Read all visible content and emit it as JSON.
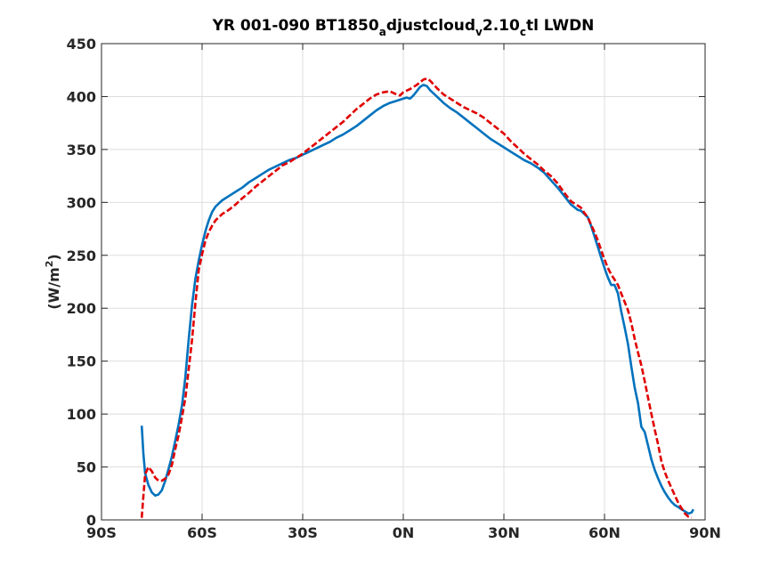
{
  "chart_data": {
    "type": "line",
    "title": "YR 001-090 BT1850",
    "title_parts": [
      {
        "text": "YR 001-090 BT1850",
        "sub": false
      },
      {
        "text": "a",
        "sub": true
      },
      {
        "text": "djustcloud",
        "sub": false
      },
      {
        "text": "v",
        "sub": true
      },
      {
        "text": "2.10",
        "sub": false
      },
      {
        "text": "c",
        "sub": true
      },
      {
        "text": "tl LWDN",
        "sub": false
      }
    ],
    "xlabel": "",
    "ylabel": "(W/m",
    "ylabel_sup": "2",
    "ylabel_close": ")",
    "xlim": [
      -90,
      90
    ],
    "ylim": [
      0,
      450
    ],
    "x_ticks": [
      {
        "value": -90,
        "label": "90S"
      },
      {
        "value": -60,
        "label": "60S"
      },
      {
        "value": -30,
        "label": "30S"
      },
      {
        "value": 0,
        "label": "0N"
      },
      {
        "value": 30,
        "label": "30N"
      },
      {
        "value": 60,
        "label": "60N"
      },
      {
        "value": 90,
        "label": "90N"
      }
    ],
    "y_ticks": [
      {
        "value": 0,
        "label": "0"
      },
      {
        "value": 50,
        "label": "50"
      },
      {
        "value": 100,
        "label": "100"
      },
      {
        "value": 150,
        "label": "150"
      },
      {
        "value": 200,
        "label": "200"
      },
      {
        "value": 250,
        "label": "250"
      },
      {
        "value": 300,
        "label": "300"
      },
      {
        "value": 350,
        "label": "350"
      },
      {
        "value": 400,
        "label": "400"
      },
      {
        "value": 450,
        "label": "450"
      }
    ],
    "grid": true,
    "series": [
      {
        "color": "#0072BD",
        "style": "solid",
        "points": [
          [
            -78,
            89
          ],
          [
            -77.5,
            62
          ],
          [
            -77,
            44
          ],
          [
            -76,
            33
          ],
          [
            -75,
            26
          ],
          [
            -74,
            23
          ],
          [
            -73,
            24
          ],
          [
            -72,
            28
          ],
          [
            -71,
            37
          ],
          [
            -70,
            48
          ],
          [
            -69,
            60
          ],
          [
            -68,
            75
          ],
          [
            -67,
            90
          ],
          [
            -66,
            108
          ],
          [
            -65,
            135
          ],
          [
            -64,
            170
          ],
          [
            -63,
            203
          ],
          [
            -62,
            228
          ],
          [
            -61,
            245
          ],
          [
            -60,
            260
          ],
          [
            -59,
            273
          ],
          [
            -58,
            283
          ],
          [
            -57,
            291
          ],
          [
            -56,
            296
          ],
          [
            -55,
            299
          ],
          [
            -54,
            302
          ],
          [
            -52,
            306
          ],
          [
            -50,
            310
          ],
          [
            -48,
            314
          ],
          [
            -46,
            319
          ],
          [
            -44,
            323
          ],
          [
            -42,
            327
          ],
          [
            -40,
            331
          ],
          [
            -38,
            334
          ],
          [
            -36,
            337
          ],
          [
            -34,
            340
          ],
          [
            -32,
            342
          ],
          [
            -30,
            345
          ],
          [
            -28,
            348
          ],
          [
            -26,
            351
          ],
          [
            -24,
            354
          ],
          [
            -22,
            357
          ],
          [
            -20,
            361
          ],
          [
            -18,
            364
          ],
          [
            -16,
            368
          ],
          [
            -14,
            372
          ],
          [
            -12,
            377
          ],
          [
            -10,
            382
          ],
          [
            -8,
            387
          ],
          [
            -6,
            391
          ],
          [
            -4,
            394
          ],
          [
            -2,
            396
          ],
          [
            0,
            398
          ],
          [
            1,
            399
          ],
          [
            2,
            398
          ],
          [
            3,
            401
          ],
          [
            4,
            405
          ],
          [
            5,
            409
          ],
          [
            6,
            411
          ],
          [
            7,
            410
          ],
          [
            8,
            406
          ],
          [
            10,
            400
          ],
          [
            12,
            394
          ],
          [
            14,
            389
          ],
          [
            16,
            385
          ],
          [
            18,
            380
          ],
          [
            20,
            375
          ],
          [
            22,
            370
          ],
          [
            24,
            365
          ],
          [
            26,
            360
          ],
          [
            28,
            356
          ],
          [
            30,
            352
          ],
          [
            32,
            348
          ],
          [
            34,
            344
          ],
          [
            36,
            340
          ],
          [
            38,
            337
          ],
          [
            40,
            333
          ],
          [
            42,
            328
          ],
          [
            44,
            321
          ],
          [
            46,
            314
          ],
          [
            48,
            306
          ],
          [
            50,
            298
          ],
          [
            52,
            293
          ],
          [
            53,
            292
          ],
          [
            54,
            289
          ],
          [
            55,
            286
          ],
          [
            56,
            278
          ],
          [
            57,
            268
          ],
          [
            58,
            258
          ],
          [
            59,
            248
          ],
          [
            60,
            238
          ],
          [
            61,
            229
          ],
          [
            62,
            222
          ],
          [
            63,
            222
          ],
          [
            64,
            214
          ],
          [
            65,
            197
          ],
          [
            66,
            182
          ],
          [
            67,
            166
          ],
          [
            68,
            145
          ],
          [
            69,
            125
          ],
          [
            70,
            110
          ],
          [
            71,
            88
          ],
          [
            72,
            83
          ],
          [
            73,
            70
          ],
          [
            74,
            57
          ],
          [
            75,
            47
          ],
          [
            76,
            39
          ],
          [
            77,
            32
          ],
          [
            78,
            26
          ],
          [
            79,
            21
          ],
          [
            80,
            17
          ],
          [
            81,
            14
          ],
          [
            82,
            12
          ],
          [
            83,
            10
          ],
          [
            84,
            8
          ],
          [
            85,
            6
          ],
          [
            86,
            7
          ],
          [
            86.5,
            10
          ]
        ]
      },
      {
        "color": "#E00000",
        "style": "dashed",
        "points": [
          [
            -78,
            2
          ],
          [
            -77.5,
            23
          ],
          [
            -77,
            43
          ],
          [
            -76,
            50
          ],
          [
            -75,
            46
          ],
          [
            -74,
            40
          ],
          [
            -73,
            37
          ],
          [
            -72,
            37
          ],
          [
            -71,
            39
          ],
          [
            -70,
            43
          ],
          [
            -69,
            52
          ],
          [
            -68,
            67
          ],
          [
            -67,
            80
          ],
          [
            -66,
            97
          ],
          [
            -65,
            115
          ],
          [
            -64,
            142
          ],
          [
            -63,
            170
          ],
          [
            -62,
            205
          ],
          [
            -61,
            236
          ],
          [
            -60,
            251
          ],
          [
            -59,
            264
          ],
          [
            -58,
            272
          ],
          [
            -57,
            278
          ],
          [
            -56,
            283
          ],
          [
            -55,
            286
          ],
          [
            -54,
            289
          ],
          [
            -52,
            293
          ],
          [
            -50,
            298
          ],
          [
            -48,
            304
          ],
          [
            -46,
            309
          ],
          [
            -44,
            315
          ],
          [
            -42,
            320
          ],
          [
            -40,
            325
          ],
          [
            -38,
            330
          ],
          [
            -36,
            335
          ],
          [
            -34,
            338
          ],
          [
            -32,
            342
          ],
          [
            -30,
            346
          ],
          [
            -28,
            351
          ],
          [
            -26,
            356
          ],
          [
            -24,
            361
          ],
          [
            -22,
            366
          ],
          [
            -20,
            371
          ],
          [
            -18,
            376
          ],
          [
            -16,
            382
          ],
          [
            -14,
            388
          ],
          [
            -12,
            393
          ],
          [
            -10,
            398
          ],
          [
            -8,
            402
          ],
          [
            -6,
            404
          ],
          [
            -4,
            405
          ],
          [
            -2,
            402
          ],
          [
            -1,
            401
          ],
          [
            0,
            404
          ],
          [
            2,
            407
          ],
          [
            4,
            411
          ],
          [
            6,
            416
          ],
          [
            7,
            417
          ],
          [
            8,
            415
          ],
          [
            10,
            408
          ],
          [
            12,
            402
          ],
          [
            14,
            398
          ],
          [
            16,
            394
          ],
          [
            18,
            390
          ],
          [
            20,
            387
          ],
          [
            22,
            384
          ],
          [
            24,
            380
          ],
          [
            26,
            375
          ],
          [
            28,
            370
          ],
          [
            30,
            365
          ],
          [
            32,
            358
          ],
          [
            34,
            352
          ],
          [
            36,
            346
          ],
          [
            38,
            341
          ],
          [
            40,
            336
          ],
          [
            42,
            330
          ],
          [
            44,
            325
          ],
          [
            46,
            318
          ],
          [
            48,
            309
          ],
          [
            50,
            301
          ],
          [
            52,
            297
          ],
          [
            53,
            295
          ],
          [
            54,
            290
          ],
          [
            55,
            286
          ],
          [
            56,
            279
          ],
          [
            57,
            272
          ],
          [
            58,
            264
          ],
          [
            59,
            255
          ],
          [
            60,
            246
          ],
          [
            61,
            238
          ],
          [
            62,
            232
          ],
          [
            63,
            227
          ],
          [
            64,
            222
          ],
          [
            65,
            214
          ],
          [
            66,
            206
          ],
          [
            67,
            198
          ],
          [
            68,
            186
          ],
          [
            69,
            171
          ],
          [
            70,
            158
          ],
          [
            71,
            146
          ],
          [
            72,
            131
          ],
          [
            73,
            115
          ],
          [
            74,
            100
          ],
          [
            75,
            85
          ],
          [
            76,
            71
          ],
          [
            77,
            55
          ],
          [
            78,
            45
          ],
          [
            79,
            37
          ],
          [
            80,
            30
          ],
          [
            81,
            23
          ],
          [
            82,
            16
          ],
          [
            83,
            11
          ],
          [
            84,
            6
          ],
          [
            85,
            3
          ],
          [
            86,
            2
          ]
        ]
      }
    ]
  }
}
